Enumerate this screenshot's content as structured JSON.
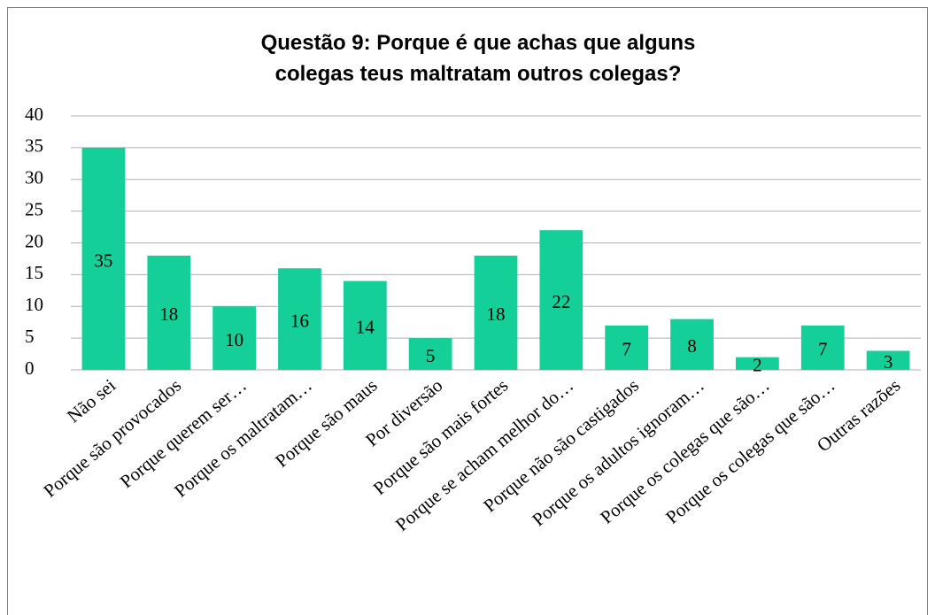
{
  "chart_data": {
    "type": "bar",
    "title": "Questão 9: Porque é que achas que alguns colegas teus maltratam outros colegas?",
    "categories": [
      "Não sei",
      "Porque são provocados",
      "Porque querem ser…",
      "Porque os maltratam…",
      "Porque são maus",
      "Por diversão",
      "Porque são mais fortes",
      "Porque se acham melhor do…",
      "Porque não são castigados",
      "Porque os adultos ignoram…",
      "Porque os colegas que são…",
      "Porque os colegas que são…",
      "Outras razões"
    ],
    "values": [
      35,
      18,
      10,
      16,
      14,
      5,
      18,
      22,
      7,
      8,
      2,
      7,
      3
    ],
    "color": "#15cf98",
    "ylim": [
      0,
      40
    ],
    "yticks": [
      0,
      5,
      10,
      15,
      20,
      25,
      30,
      35,
      40
    ],
    "grid": true
  }
}
